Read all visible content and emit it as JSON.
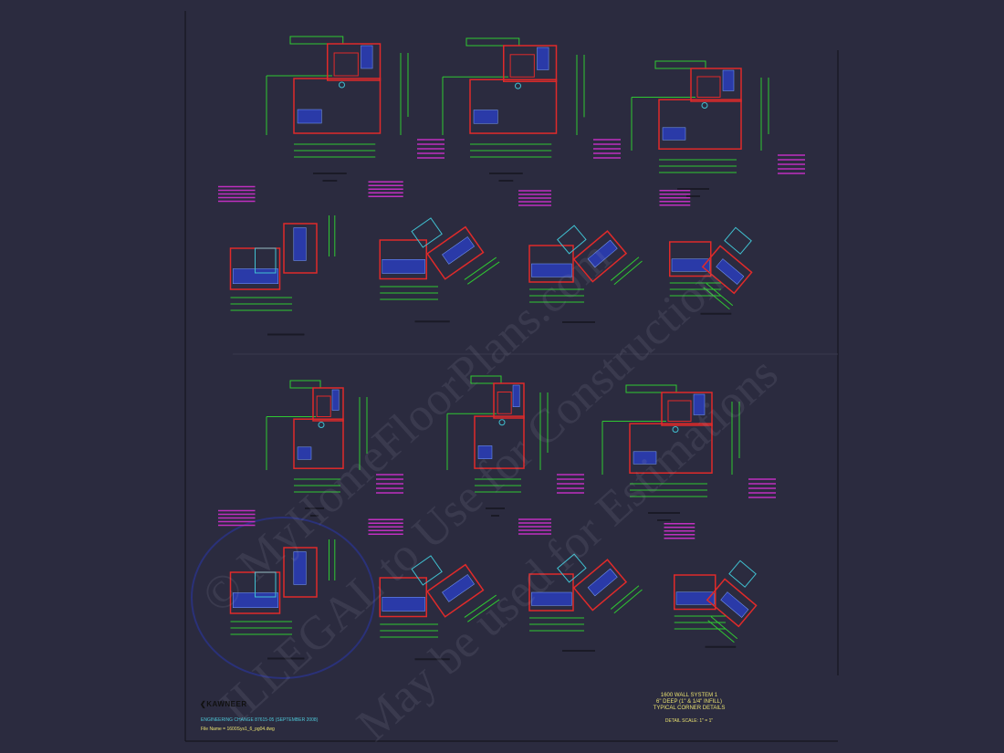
{
  "title_block": {
    "line1": "1600 WALL SYSTEM 1",
    "line2": "6\" DEEP (1\" & 1/4\" INFILL)",
    "line3": "TYPICAL CORNER DETAILS",
    "scale": "DETAIL SCALE: 1\" = 1\""
  },
  "logo": {
    "text": "KAWNEER"
  },
  "engineering_change": "ENGINEERING CHANGE 87615-05 (SEPTEMBER 2008)",
  "file_name": "File Name = 1600Sys1_6_pg04.dwg",
  "watermark": {
    "line1": "© MyHomeFloorPlans.com",
    "line2": "ILLEGAL to Use for Construction",
    "line3": "May be used for Estimations"
  },
  "colors": {
    "background": "#2b2b3f",
    "frame": "#e02a2a",
    "dimension": "#2fc832",
    "glass": "#2a3aa8",
    "note": "#c030c0",
    "anchor": "#40c0d0"
  }
}
